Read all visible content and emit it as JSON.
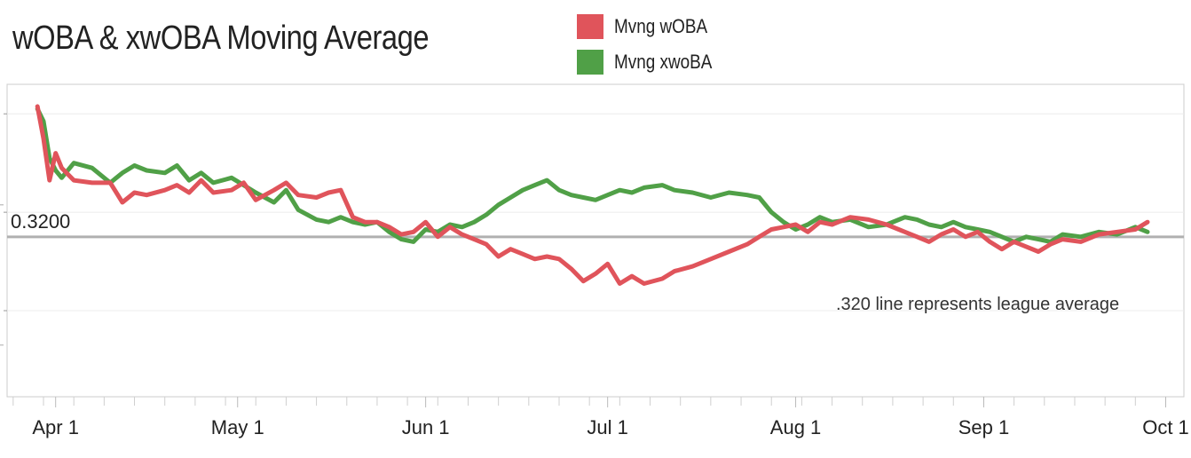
{
  "chart_data": {
    "type": "line",
    "title": "wOBA & xwOBA Moving Average",
    "xlabel": "",
    "ylabel": "",
    "x_axis": {
      "type": "date",
      "range": [
        "2023-03-24",
        "2023-10-04"
      ],
      "ticks": [
        {
          "date": "2023-04-01",
          "label": "Apr 1"
        },
        {
          "date": "2023-05-01",
          "label": "May 1"
        },
        {
          "date": "2023-06-01",
          "label": "Jun 1"
        },
        {
          "date": "2023-07-01",
          "label": "Jul 1"
        },
        {
          "date": "2023-08-01",
          "label": "Aug 1"
        },
        {
          "date": "2023-09-01",
          "label": "Sep 1"
        },
        {
          "date": "2023-10-01",
          "label": "Oct 1"
        }
      ]
    },
    "ylim": [
      0.255,
      0.382
    ],
    "reference_line": {
      "value": 0.32,
      "label": "0.3200",
      "color": "#b0b0b0"
    },
    "annotation": {
      "text": ".320 line represents league average"
    },
    "legend": {
      "placement": "top-center"
    },
    "grid": true,
    "series": [
      {
        "name": "Mvng wOBA",
        "color": "#e0545b",
        "points": [
          [
            "2023-03-29",
            0.373
          ],
          [
            "2023-03-30",
            0.36
          ],
          [
            "2023-03-31",
            0.343
          ],
          [
            "2023-04-01",
            0.354
          ],
          [
            "2023-04-02",
            0.348
          ],
          [
            "2023-04-04",
            0.343
          ],
          [
            "2023-04-07",
            0.342
          ],
          [
            "2023-04-10",
            0.342
          ],
          [
            "2023-04-12",
            0.334
          ],
          [
            "2023-04-14",
            0.338
          ],
          [
            "2023-04-16",
            0.337
          ],
          [
            "2023-04-19",
            0.339
          ],
          [
            "2023-04-21",
            0.341
          ],
          [
            "2023-04-23",
            0.338
          ],
          [
            "2023-04-25",
            0.343
          ],
          [
            "2023-04-27",
            0.338
          ],
          [
            "2023-04-30",
            0.339
          ],
          [
            "2023-05-02",
            0.342
          ],
          [
            "2023-05-04",
            0.335
          ],
          [
            "2023-05-07",
            0.339
          ],
          [
            "2023-05-09",
            0.342
          ],
          [
            "2023-05-11",
            0.337
          ],
          [
            "2023-05-14",
            0.336
          ],
          [
            "2023-05-16",
            0.338
          ],
          [
            "2023-05-18",
            0.339
          ],
          [
            "2023-05-20",
            0.328
          ],
          [
            "2023-05-22",
            0.326
          ],
          [
            "2023-05-24",
            0.326
          ],
          [
            "2023-05-26",
            0.324
          ],
          [
            "2023-05-28",
            0.321
          ],
          [
            "2023-05-30",
            0.322
          ],
          [
            "2023-06-01",
            0.326
          ],
          [
            "2023-06-03",
            0.32
          ],
          [
            "2023-06-05",
            0.324
          ],
          [
            "2023-06-07",
            0.321
          ],
          [
            "2023-06-09",
            0.319
          ],
          [
            "2023-06-11",
            0.317
          ],
          [
            "2023-06-13",
            0.312
          ],
          [
            "2023-06-15",
            0.315
          ],
          [
            "2023-06-17",
            0.313
          ],
          [
            "2023-06-19",
            0.311
          ],
          [
            "2023-06-21",
            0.312
          ],
          [
            "2023-06-23",
            0.311
          ],
          [
            "2023-06-25",
            0.307
          ],
          [
            "2023-06-27",
            0.302
          ],
          [
            "2023-06-29",
            0.305
          ],
          [
            "2023-07-01",
            0.309
          ],
          [
            "2023-07-03",
            0.301
          ],
          [
            "2023-07-05",
            0.304
          ],
          [
            "2023-07-07",
            0.301
          ],
          [
            "2023-07-10",
            0.303
          ],
          [
            "2023-07-12",
            0.306
          ],
          [
            "2023-07-15",
            0.308
          ],
          [
            "2023-07-18",
            0.311
          ],
          [
            "2023-07-21",
            0.314
          ],
          [
            "2023-07-24",
            0.317
          ],
          [
            "2023-07-26",
            0.32
          ],
          [
            "2023-07-28",
            0.323
          ],
          [
            "2023-07-30",
            0.324
          ],
          [
            "2023-08-01",
            0.325
          ],
          [
            "2023-08-03",
            0.322
          ],
          [
            "2023-08-05",
            0.326
          ],
          [
            "2023-08-07",
            0.325
          ],
          [
            "2023-08-10",
            0.328
          ],
          [
            "2023-08-13",
            0.327
          ],
          [
            "2023-08-16",
            0.325
          ],
          [
            "2023-08-19",
            0.322
          ],
          [
            "2023-08-21",
            0.32
          ],
          [
            "2023-08-23",
            0.318
          ],
          [
            "2023-08-25",
            0.321
          ],
          [
            "2023-08-27",
            0.323
          ],
          [
            "2023-08-29",
            0.32
          ],
          [
            "2023-08-31",
            0.322
          ],
          [
            "2023-09-02",
            0.318
          ],
          [
            "2023-09-04",
            0.315
          ],
          [
            "2023-09-06",
            0.318
          ],
          [
            "2023-09-08",
            0.316
          ],
          [
            "2023-09-10",
            0.314
          ],
          [
            "2023-09-12",
            0.317
          ],
          [
            "2023-09-14",
            0.319
          ],
          [
            "2023-09-17",
            0.318
          ],
          [
            "2023-09-20",
            0.321
          ],
          [
            "2023-09-23",
            0.322
          ],
          [
            "2023-09-26",
            0.323
          ],
          [
            "2023-09-28",
            0.326
          ]
        ]
      },
      {
        "name": "Mvng xwoBA",
        "color": "#50a047",
        "points": [
          [
            "2023-03-29",
            0.372
          ],
          [
            "2023-03-30",
            0.367
          ],
          [
            "2023-03-31",
            0.352
          ],
          [
            "2023-04-01",
            0.347
          ],
          [
            "2023-04-02",
            0.344
          ],
          [
            "2023-04-04",
            0.35
          ],
          [
            "2023-04-07",
            0.348
          ],
          [
            "2023-04-10",
            0.342
          ],
          [
            "2023-04-12",
            0.346
          ],
          [
            "2023-04-14",
            0.349
          ],
          [
            "2023-04-16",
            0.347
          ],
          [
            "2023-04-19",
            0.346
          ],
          [
            "2023-04-21",
            0.349
          ],
          [
            "2023-04-23",
            0.343
          ],
          [
            "2023-04-25",
            0.346
          ],
          [
            "2023-04-27",
            0.342
          ],
          [
            "2023-04-30",
            0.344
          ],
          [
            "2023-05-02",
            0.341
          ],
          [
            "2023-05-04",
            0.338
          ],
          [
            "2023-05-07",
            0.334
          ],
          [
            "2023-05-09",
            0.339
          ],
          [
            "2023-05-11",
            0.331
          ],
          [
            "2023-05-14",
            0.327
          ],
          [
            "2023-05-16",
            0.326
          ],
          [
            "2023-05-18",
            0.328
          ],
          [
            "2023-05-20",
            0.326
          ],
          [
            "2023-05-22",
            0.325
          ],
          [
            "2023-05-24",
            0.326
          ],
          [
            "2023-05-26",
            0.322
          ],
          [
            "2023-05-28",
            0.319
          ],
          [
            "2023-05-30",
            0.318
          ],
          [
            "2023-06-01",
            0.323
          ],
          [
            "2023-06-03",
            0.322
          ],
          [
            "2023-06-05",
            0.325
          ],
          [
            "2023-06-07",
            0.324
          ],
          [
            "2023-06-09",
            0.326
          ],
          [
            "2023-06-11",
            0.329
          ],
          [
            "2023-06-13",
            0.333
          ],
          [
            "2023-06-15",
            0.336
          ],
          [
            "2023-06-17",
            0.339
          ],
          [
            "2023-06-19",
            0.341
          ],
          [
            "2023-06-21",
            0.343
          ],
          [
            "2023-06-23",
            0.339
          ],
          [
            "2023-06-25",
            0.337
          ],
          [
            "2023-06-27",
            0.336
          ],
          [
            "2023-06-29",
            0.335
          ],
          [
            "2023-07-01",
            0.337
          ],
          [
            "2023-07-03",
            0.339
          ],
          [
            "2023-07-05",
            0.338
          ],
          [
            "2023-07-07",
            0.34
          ],
          [
            "2023-07-10",
            0.341
          ],
          [
            "2023-07-12",
            0.339
          ],
          [
            "2023-07-15",
            0.338
          ],
          [
            "2023-07-18",
            0.336
          ],
          [
            "2023-07-21",
            0.338
          ],
          [
            "2023-07-24",
            0.337
          ],
          [
            "2023-07-26",
            0.336
          ],
          [
            "2023-07-28",
            0.33
          ],
          [
            "2023-07-30",
            0.326
          ],
          [
            "2023-08-01",
            0.323
          ],
          [
            "2023-08-03",
            0.325
          ],
          [
            "2023-08-05",
            0.328
          ],
          [
            "2023-08-07",
            0.326
          ],
          [
            "2023-08-10",
            0.327
          ],
          [
            "2023-08-13",
            0.324
          ],
          [
            "2023-08-16",
            0.325
          ],
          [
            "2023-08-19",
            0.328
          ],
          [
            "2023-08-21",
            0.327
          ],
          [
            "2023-08-23",
            0.325
          ],
          [
            "2023-08-25",
            0.324
          ],
          [
            "2023-08-27",
            0.326
          ],
          [
            "2023-08-29",
            0.324
          ],
          [
            "2023-08-31",
            0.323
          ],
          [
            "2023-09-02",
            0.322
          ],
          [
            "2023-09-04",
            0.32
          ],
          [
            "2023-09-06",
            0.318
          ],
          [
            "2023-09-08",
            0.32
          ],
          [
            "2023-09-10",
            0.319
          ],
          [
            "2023-09-12",
            0.318
          ],
          [
            "2023-09-14",
            0.321
          ],
          [
            "2023-09-17",
            0.32
          ],
          [
            "2023-09-20",
            0.322
          ],
          [
            "2023-09-23",
            0.321
          ],
          [
            "2023-09-26",
            0.324
          ],
          [
            "2023-09-28",
            0.322
          ]
        ]
      }
    ]
  }
}
